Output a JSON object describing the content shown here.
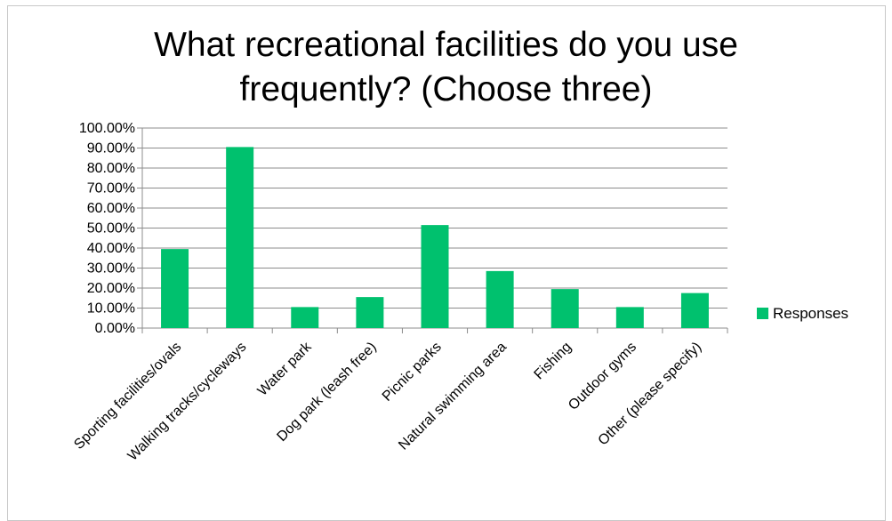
{
  "chart_data": {
    "type": "bar",
    "title_lines": [
      "What recreational facilities do you use",
      "frequently? (Choose three)"
    ],
    "categories": [
      "Sporting facilities/ovals",
      "Walking tracks/cycleways",
      "Water park",
      "Dog park (leash free)",
      "Picnic parks",
      "Natural swimming area",
      "Fishing",
      "Outdoor gyms",
      "Other (please specify)"
    ],
    "series": [
      {
        "name": "Responses",
        "values": [
          39.5,
          90.5,
          10.5,
          15.5,
          51.5,
          28.5,
          19.5,
          10.5,
          17.5
        ],
        "color": "#00c16e"
      }
    ],
    "ylim": [
      0,
      100
    ],
    "yticks": [
      "0.00%",
      "10.00%",
      "20.00%",
      "30.00%",
      "40.00%",
      "50.00%",
      "60.00%",
      "70.00%",
      "80.00%",
      "90.00%",
      "100.00%"
    ],
    "grid": true,
    "legend_position": "right"
  }
}
